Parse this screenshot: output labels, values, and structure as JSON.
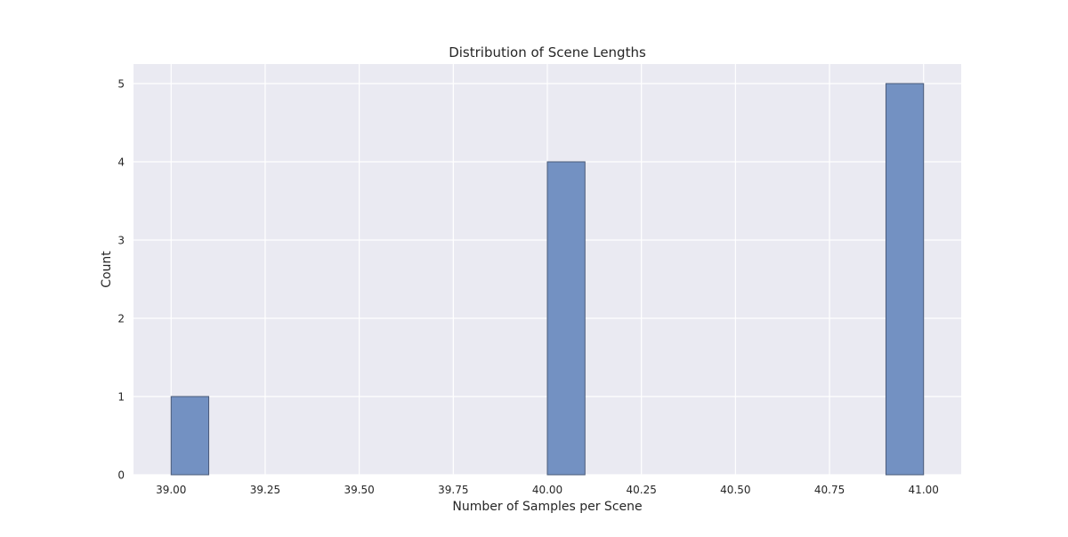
{
  "chart_data": {
    "type": "bar",
    "title": "Distribution of Scene Lengths",
    "xlabel": "Number of Samples per Scene",
    "ylabel": "Count",
    "xlim": [
      38.9,
      41.1
    ],
    "ylim": [
      0,
      5.25
    ],
    "x_ticks": [
      "39.00",
      "39.25",
      "39.50",
      "39.75",
      "40.00",
      "40.25",
      "40.50",
      "40.75",
      "41.00"
    ],
    "y_ticks": [
      "0",
      "1",
      "2",
      "3",
      "4",
      "5"
    ],
    "bins": [
      {
        "x0": 39.0,
        "x1": 39.1,
        "count": 1
      },
      {
        "x0": 40.0,
        "x1": 40.1,
        "count": 4
      },
      {
        "x0": 40.9,
        "x1": 41.0,
        "count": 5
      }
    ],
    "grid": true,
    "colors": {
      "bar_fill": "#7391c2",
      "bar_edge": "#4a5a78",
      "plot_background": "#eaeaf2",
      "grid": "#ffffff"
    }
  }
}
